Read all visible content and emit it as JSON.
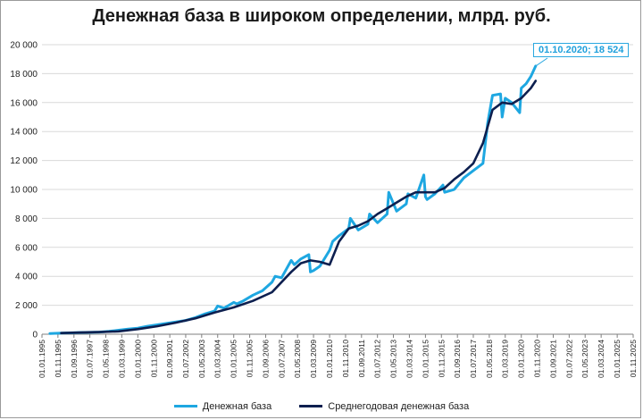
{
  "chart_data": {
    "type": "line",
    "title": "Денежная база в широком определении, млрд. руб.",
    "xlabel": "",
    "ylabel": "",
    "ylim": [
      0,
      20000
    ],
    "yticks": [
      0,
      2000,
      4000,
      6000,
      8000,
      10000,
      12000,
      14000,
      16000,
      18000,
      20000
    ],
    "ytick_labels": [
      "0",
      "2 000",
      "4 000",
      "6 000",
      "8 000",
      "10 000",
      "12 000",
      "14 000",
      "16 000",
      "18 000",
      "20 000"
    ],
    "xlim": [
      "1995-01-01",
      "2025-11-01"
    ],
    "xtick_labels": [
      "01.01.1995",
      "01.11.1995",
      "01.09.1996",
      "01.07.1997",
      "01.05.1998",
      "01.03.1999",
      "01.01.2000",
      "01.11.2000",
      "01.09.2001",
      "01.07.2002",
      "01.05.2003",
      "01.03.2004",
      "01.01.2005",
      "01.11.2005",
      "01.09.2006",
      "01.07.2007",
      "01.05.2008",
      "01.03.2009",
      "01.01.2010",
      "01.11.2010",
      "01.09.2011",
      "01.07.2012",
      "01.05.2013",
      "01.03.2014",
      "01.01.2015",
      "01.11.2015",
      "01.09.2016",
      "01.07.2017",
      "01.05.2018",
      "01.03.2019",
      "01.01.2020",
      "01.11.2020",
      "01.09.2021",
      "01.07.2022",
      "01.05.2023",
      "01.03.2024",
      "01.01.2025",
      "01.11.2025"
    ],
    "grid": "horizontal",
    "legend_position": "bottom",
    "series": [
      {
        "name": "Денежная база",
        "color": "#1ea7e1",
        "x": [
          "1995-06-01",
          "1996-01-01",
          "1997-01-01",
          "1998-01-01",
          "1998-07-01",
          "1999-01-01",
          "1999-07-01",
          "2000-01-01",
          "2000-07-01",
          "2001-01-01",
          "2001-07-01",
          "2002-01-01",
          "2002-07-01",
          "2003-01-01",
          "2003-07-01",
          "2004-01-01",
          "2004-03-01",
          "2004-07-01",
          "2005-01-01",
          "2005-03-01",
          "2005-07-01",
          "2006-01-01",
          "2006-07-01",
          "2007-01-01",
          "2007-03-01",
          "2007-07-01",
          "2008-01-01",
          "2008-03-01",
          "2008-07-01",
          "2008-12-01",
          "2009-01-01",
          "2009-03-01",
          "2009-07-01",
          "2010-01-01",
          "2010-03-01",
          "2010-07-01",
          "2011-01-01",
          "2011-02-01",
          "2011-07-01",
          "2012-01-01",
          "2012-02-01",
          "2012-07-01",
          "2013-01-01",
          "2013-02-01",
          "2013-07-01",
          "2014-01-01",
          "2014-02-01",
          "2014-07-01",
          "2014-12-01",
          "2015-01-01",
          "2015-02-01",
          "2015-07-01",
          "2015-12-01",
          "2016-01-01",
          "2016-07-01",
          "2017-01-01",
          "2017-07-01",
          "2018-01-01",
          "2018-04-01",
          "2018-07-01",
          "2018-12-01",
          "2019-01-01",
          "2019-03-01",
          "2019-07-01",
          "2019-12-01",
          "2020-01-01",
          "2020-04-01",
          "2020-07-01",
          "2020-10-01"
        ],
        "values": [
          50,
          80,
          120,
          150,
          200,
          280,
          350,
          420,
          550,
          650,
          750,
          850,
          950,
          1150,
          1400,
          1600,
          1950,
          1800,
          2200,
          2100,
          2300,
          2700,
          3000,
          3600,
          4000,
          3900,
          5100,
          4800,
          5200,
          5500,
          4300,
          4400,
          4700,
          5800,
          6400,
          6800,
          7300,
          8000,
          7200,
          7600,
          8300,
          7700,
          8300,
          9800,
          8500,
          9000,
          9700,
          9400,
          11000,
          9500,
          9300,
          9700,
          10300,
          9800,
          10000,
          10800,
          11300,
          11800,
          14600,
          16500,
          16600,
          15000,
          16300,
          16000,
          15300,
          17000,
          17300,
          17800,
          18524
        ]
      },
      {
        "name": "Среднегодовая денежная база",
        "color": "#0d1f4f",
        "x": [
          "1996-01-01",
          "1997-01-01",
          "1998-01-01",
          "1999-01-01",
          "2000-01-01",
          "2001-01-01",
          "2002-01-01",
          "2003-01-01",
          "2004-01-01",
          "2005-01-01",
          "2006-01-01",
          "2007-01-01",
          "2007-07-01",
          "2008-01-01",
          "2008-07-01",
          "2009-01-01",
          "2009-07-01",
          "2010-01-01",
          "2010-07-01",
          "2011-01-01",
          "2011-07-01",
          "2012-01-01",
          "2012-07-01",
          "2013-01-01",
          "2013-07-01",
          "2014-01-01",
          "2014-07-01",
          "2015-01-01",
          "2015-07-01",
          "2016-01-01",
          "2016-07-01",
          "2017-01-01",
          "2017-07-01",
          "2018-01-01",
          "2018-07-01",
          "2019-01-01",
          "2019-07-01",
          "2020-01-01",
          "2020-07-01",
          "2020-10-01"
        ],
        "values": [
          80,
          120,
          150,
          200,
          350,
          550,
          800,
          1100,
          1500,
          1850,
          2300,
          2900,
          3600,
          4300,
          4900,
          5100,
          5000,
          4800,
          6400,
          7300,
          7500,
          7800,
          8300,
          8700,
          9100,
          9500,
          9800,
          9800,
          9800,
          10100,
          10700,
          11200,
          11800,
          13200,
          15500,
          16000,
          15900,
          16300,
          17000,
          17500
        ]
      }
    ],
    "annotations": [
      {
        "text": "01.10.2020;  18 524",
        "x": "2020-10-01",
        "y": 18524
      }
    ]
  }
}
